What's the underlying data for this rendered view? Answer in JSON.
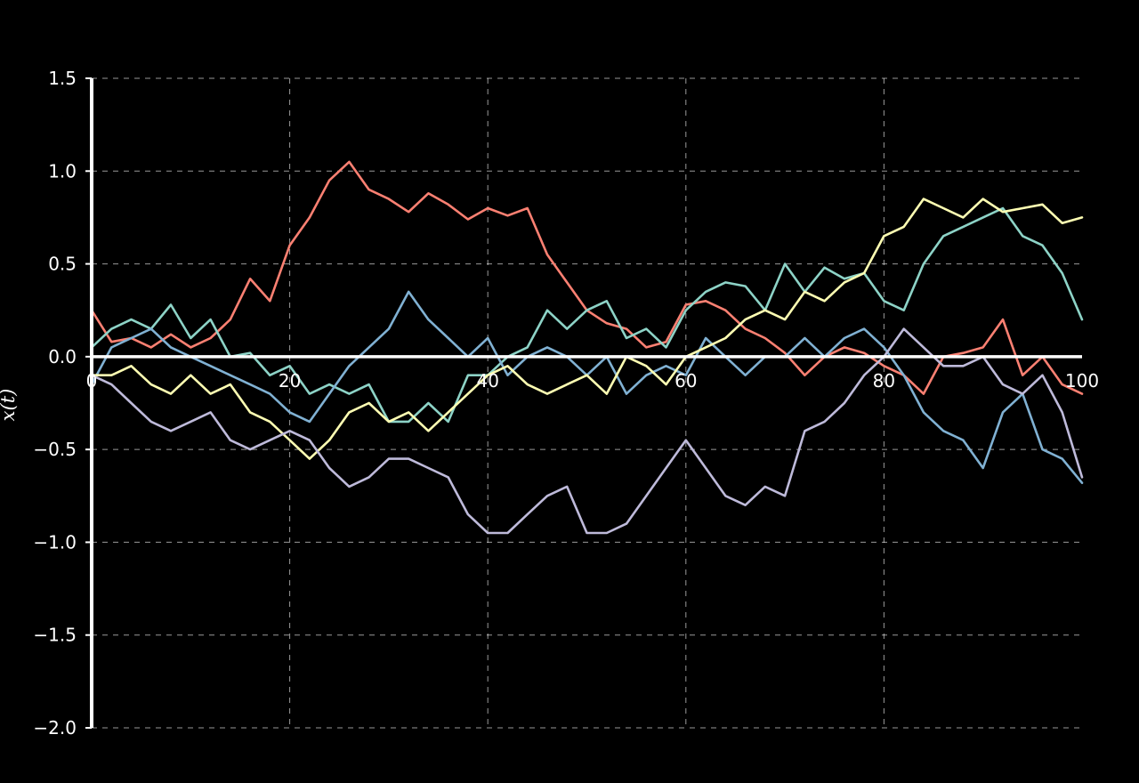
{
  "chart_data": {
    "type": "line",
    "title": "",
    "xlabel": "",
    "ylabel": "x(t)",
    "xlim": [
      0,
      100
    ],
    "ylim": [
      -2.0,
      1.5
    ],
    "grid": true,
    "x_ticks": [
      0,
      20,
      40,
      60,
      80,
      100
    ],
    "x_tick_labels": [
      "0",
      "20",
      "40",
      "60",
      "80",
      "100"
    ],
    "y_ticks": [
      1.5,
      1.0,
      0.5,
      0.0,
      -0.5,
      -1.0,
      -1.5,
      -2.0
    ],
    "y_tick_labels": [
      "1.5",
      "1.0",
      "0.5",
      "0.0",
      "−0.5",
      "−1.0",
      "−1.5",
      "−2.0"
    ],
    "background": "#000000",
    "foreground": "#ffffff",
    "series": [
      {
        "color": "#fb8072",
        "x": [
          0,
          2,
          4,
          6,
          8,
          10,
          12,
          14,
          16,
          18,
          20,
          22,
          24,
          26,
          28,
          30,
          32,
          34,
          36,
          38,
          40,
          42,
          44,
          46,
          48,
          50,
          52,
          54,
          56,
          58,
          60,
          62,
          64,
          66,
          68,
          70,
          72,
          74,
          76,
          78,
          80,
          82,
          84,
          86,
          88,
          90,
          92,
          94,
          96,
          98,
          100
        ],
        "y": [
          0.25,
          0.08,
          0.1,
          0.05,
          0.12,
          0.05,
          0.1,
          0.2,
          0.42,
          0.3,
          0.6,
          0.75,
          0.95,
          1.05,
          0.9,
          0.85,
          0.78,
          0.88,
          0.82,
          0.74,
          0.8,
          0.76,
          0.8,
          0.55,
          0.4,
          0.25,
          0.18,
          0.15,
          0.05,
          0.08,
          0.28,
          0.3,
          0.25,
          0.15,
          0.1,
          0.02,
          -0.1,
          0.0,
          0.05,
          0.02,
          -0.05,
          -0.1,
          -0.2,
          0.0,
          0.02,
          0.05,
          0.2,
          -0.1,
          0.0,
          -0.15,
          -0.2
        ]
      },
      {
        "color": "#8dd3c7",
        "x": [
          0,
          2,
          4,
          6,
          8,
          10,
          12,
          14,
          16,
          18,
          20,
          22,
          24,
          26,
          28,
          30,
          32,
          34,
          36,
          38,
          40,
          42,
          44,
          46,
          48,
          50,
          52,
          54,
          56,
          58,
          60,
          62,
          64,
          66,
          68,
          70,
          72,
          74,
          76,
          78,
          80,
          82,
          84,
          86,
          88,
          90,
          92,
          94,
          96,
          98,
          100
        ],
        "y": [
          0.05,
          0.15,
          0.2,
          0.15,
          0.28,
          0.1,
          0.2,
          0.0,
          0.02,
          -0.1,
          -0.05,
          -0.2,
          -0.15,
          -0.2,
          -0.15,
          -0.35,
          -0.35,
          -0.25,
          -0.35,
          -0.1,
          -0.1,
          0.0,
          0.05,
          0.25,
          0.15,
          0.25,
          0.3,
          0.1,
          0.15,
          0.05,
          0.25,
          0.35,
          0.4,
          0.38,
          0.25,
          0.5,
          0.35,
          0.48,
          0.42,
          0.45,
          0.3,
          0.25,
          0.5,
          0.65,
          0.7,
          0.75,
          0.8,
          0.65,
          0.6,
          0.45,
          0.2
        ]
      },
      {
        "color": "#80b1d3",
        "x": [
          0,
          2,
          4,
          6,
          8,
          10,
          12,
          14,
          16,
          18,
          20,
          22,
          24,
          26,
          28,
          30,
          32,
          34,
          36,
          38,
          40,
          42,
          44,
          46,
          48,
          50,
          52,
          54,
          56,
          58,
          60,
          62,
          64,
          66,
          68,
          70,
          72,
          74,
          76,
          78,
          80,
          82,
          84,
          86,
          88,
          90,
          92,
          94,
          96,
          98,
          100
        ],
        "y": [
          -0.15,
          0.05,
          0.1,
          0.15,
          0.05,
          0.0,
          -0.05,
          -0.1,
          -0.15,
          -0.2,
          -0.3,
          -0.35,
          -0.2,
          -0.05,
          0.05,
          0.15,
          0.35,
          0.2,
          0.1,
          0.0,
          0.1,
          -0.1,
          0.0,
          0.05,
          0.0,
          -0.1,
          0.0,
          -0.2,
          -0.1,
          -0.05,
          -0.1,
          0.1,
          0.0,
          -0.1,
          0.0,
          0.0,
          0.1,
          0.0,
          0.1,
          0.15,
          0.05,
          -0.1,
          -0.3,
          -0.4,
          -0.45,
          -0.6,
          -0.3,
          -0.2,
          -0.5,
          -0.55,
          -0.68
        ]
      },
      {
        "color": "#ffffb3",
        "x": [
          0,
          2,
          4,
          6,
          8,
          10,
          12,
          14,
          16,
          18,
          20,
          22,
          24,
          26,
          28,
          30,
          32,
          34,
          36,
          38,
          40,
          42,
          44,
          46,
          48,
          50,
          52,
          54,
          56,
          58,
          60,
          62,
          64,
          66,
          68,
          70,
          72,
          74,
          76,
          78,
          80,
          82,
          84,
          86,
          88,
          90,
          92,
          94,
          96,
          98,
          100
        ],
        "y": [
          -0.1,
          -0.1,
          -0.05,
          -0.15,
          -0.2,
          -0.1,
          -0.2,
          -0.15,
          -0.3,
          -0.35,
          -0.45,
          -0.55,
          -0.45,
          -0.3,
          -0.25,
          -0.35,
          -0.3,
          -0.4,
          -0.3,
          -0.2,
          -0.1,
          -0.05,
          -0.15,
          -0.2,
          -0.15,
          -0.1,
          -0.2,
          0.0,
          -0.05,
          -0.15,
          0.0,
          0.05,
          0.1,
          0.2,
          0.25,
          0.2,
          0.35,
          0.3,
          0.4,
          0.45,
          0.65,
          0.7,
          0.85,
          0.8,
          0.75,
          0.85,
          0.78,
          0.8,
          0.82,
          0.72,
          0.75
        ]
      },
      {
        "color": "#bebada",
        "x": [
          0,
          2,
          4,
          6,
          8,
          10,
          12,
          14,
          16,
          18,
          20,
          22,
          24,
          26,
          28,
          30,
          32,
          34,
          36,
          38,
          40,
          42,
          44,
          46,
          48,
          50,
          52,
          54,
          56,
          58,
          60,
          62,
          64,
          66,
          68,
          70,
          72,
          74,
          76,
          78,
          80,
          82,
          84,
          86,
          88,
          90,
          92,
          94,
          96,
          98,
          100
        ],
        "y": [
          -0.1,
          -0.15,
          -0.25,
          -0.35,
          -0.4,
          -0.35,
          -0.3,
          -0.45,
          -0.5,
          -0.45,
          -0.4,
          -0.45,
          -0.6,
          -0.7,
          -0.65,
          -0.55,
          -0.55,
          -0.6,
          -0.65,
          -0.85,
          -0.95,
          -0.95,
          -0.85,
          -0.75,
          -0.7,
          -0.95,
          -0.95,
          -0.9,
          -0.75,
          -0.6,
          -0.45,
          -0.6,
          -0.75,
          -0.8,
          -0.7,
          -0.75,
          -0.4,
          -0.35,
          -0.25,
          -0.1,
          0.0,
          0.15,
          0.05,
          -0.05,
          -0.05,
          0.0,
          -0.15,
          -0.2,
          -0.1,
          -0.3,
          -0.65
        ]
      }
    ]
  }
}
